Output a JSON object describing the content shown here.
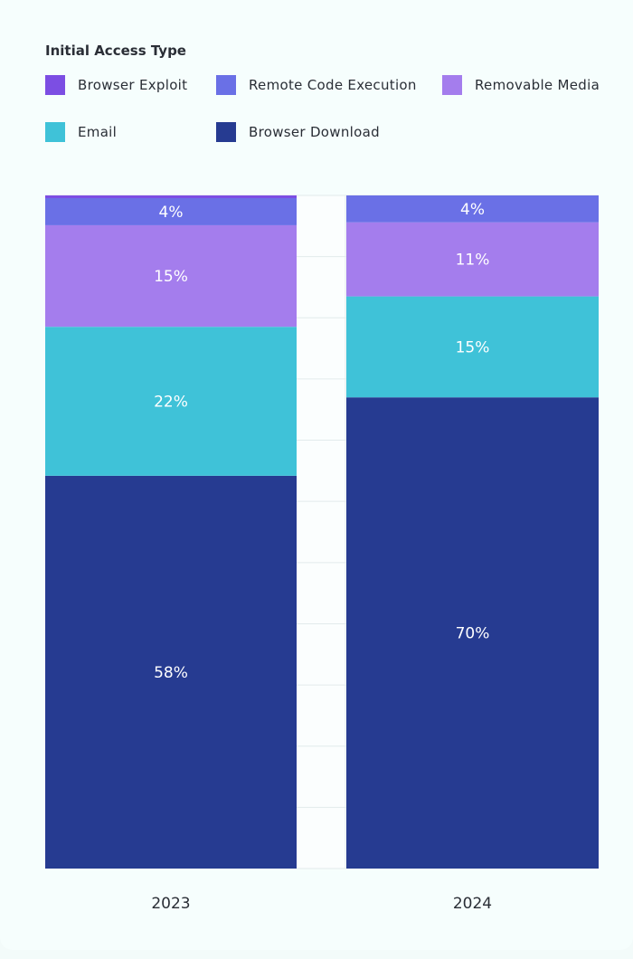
{
  "chart_data": {
    "type": "bar",
    "stacked": true,
    "normalized": true,
    "legend_title": "Initial Access Type",
    "categories": [
      "2023",
      "2024"
    ],
    "series": [
      {
        "name": "Browser Download",
        "color": "#263b91",
        "values": [
          58,
          70
        ]
      },
      {
        "name": "Email",
        "color": "#3fc2d8",
        "values": [
          22,
          15
        ]
      },
      {
        "name": "Removable Media",
        "color": "#a47ded",
        "values": [
          15,
          11
        ]
      },
      {
        "name": "Remote Code Execution",
        "color": "#6a70e6",
        "values": [
          4,
          4
        ]
      },
      {
        "name": "Browser Exploit",
        "color": "#7c4ee3",
        "values": [
          0.4,
          0
        ]
      }
    ],
    "data_labels": [
      [
        "58%",
        "70%"
      ],
      [
        "22%",
        "15%"
      ],
      [
        "15%",
        "11%"
      ],
      [
        "4%",
        "4%"
      ],
      [
        "",
        ""
      ]
    ],
    "legend_order": [
      "Browser Exploit",
      "Remote Code Execution",
      "Removable Media",
      "Email",
      "Browser Download"
    ],
    "ylim": [
      0,
      100
    ],
    "grid": true,
    "legend_position": "top"
  }
}
